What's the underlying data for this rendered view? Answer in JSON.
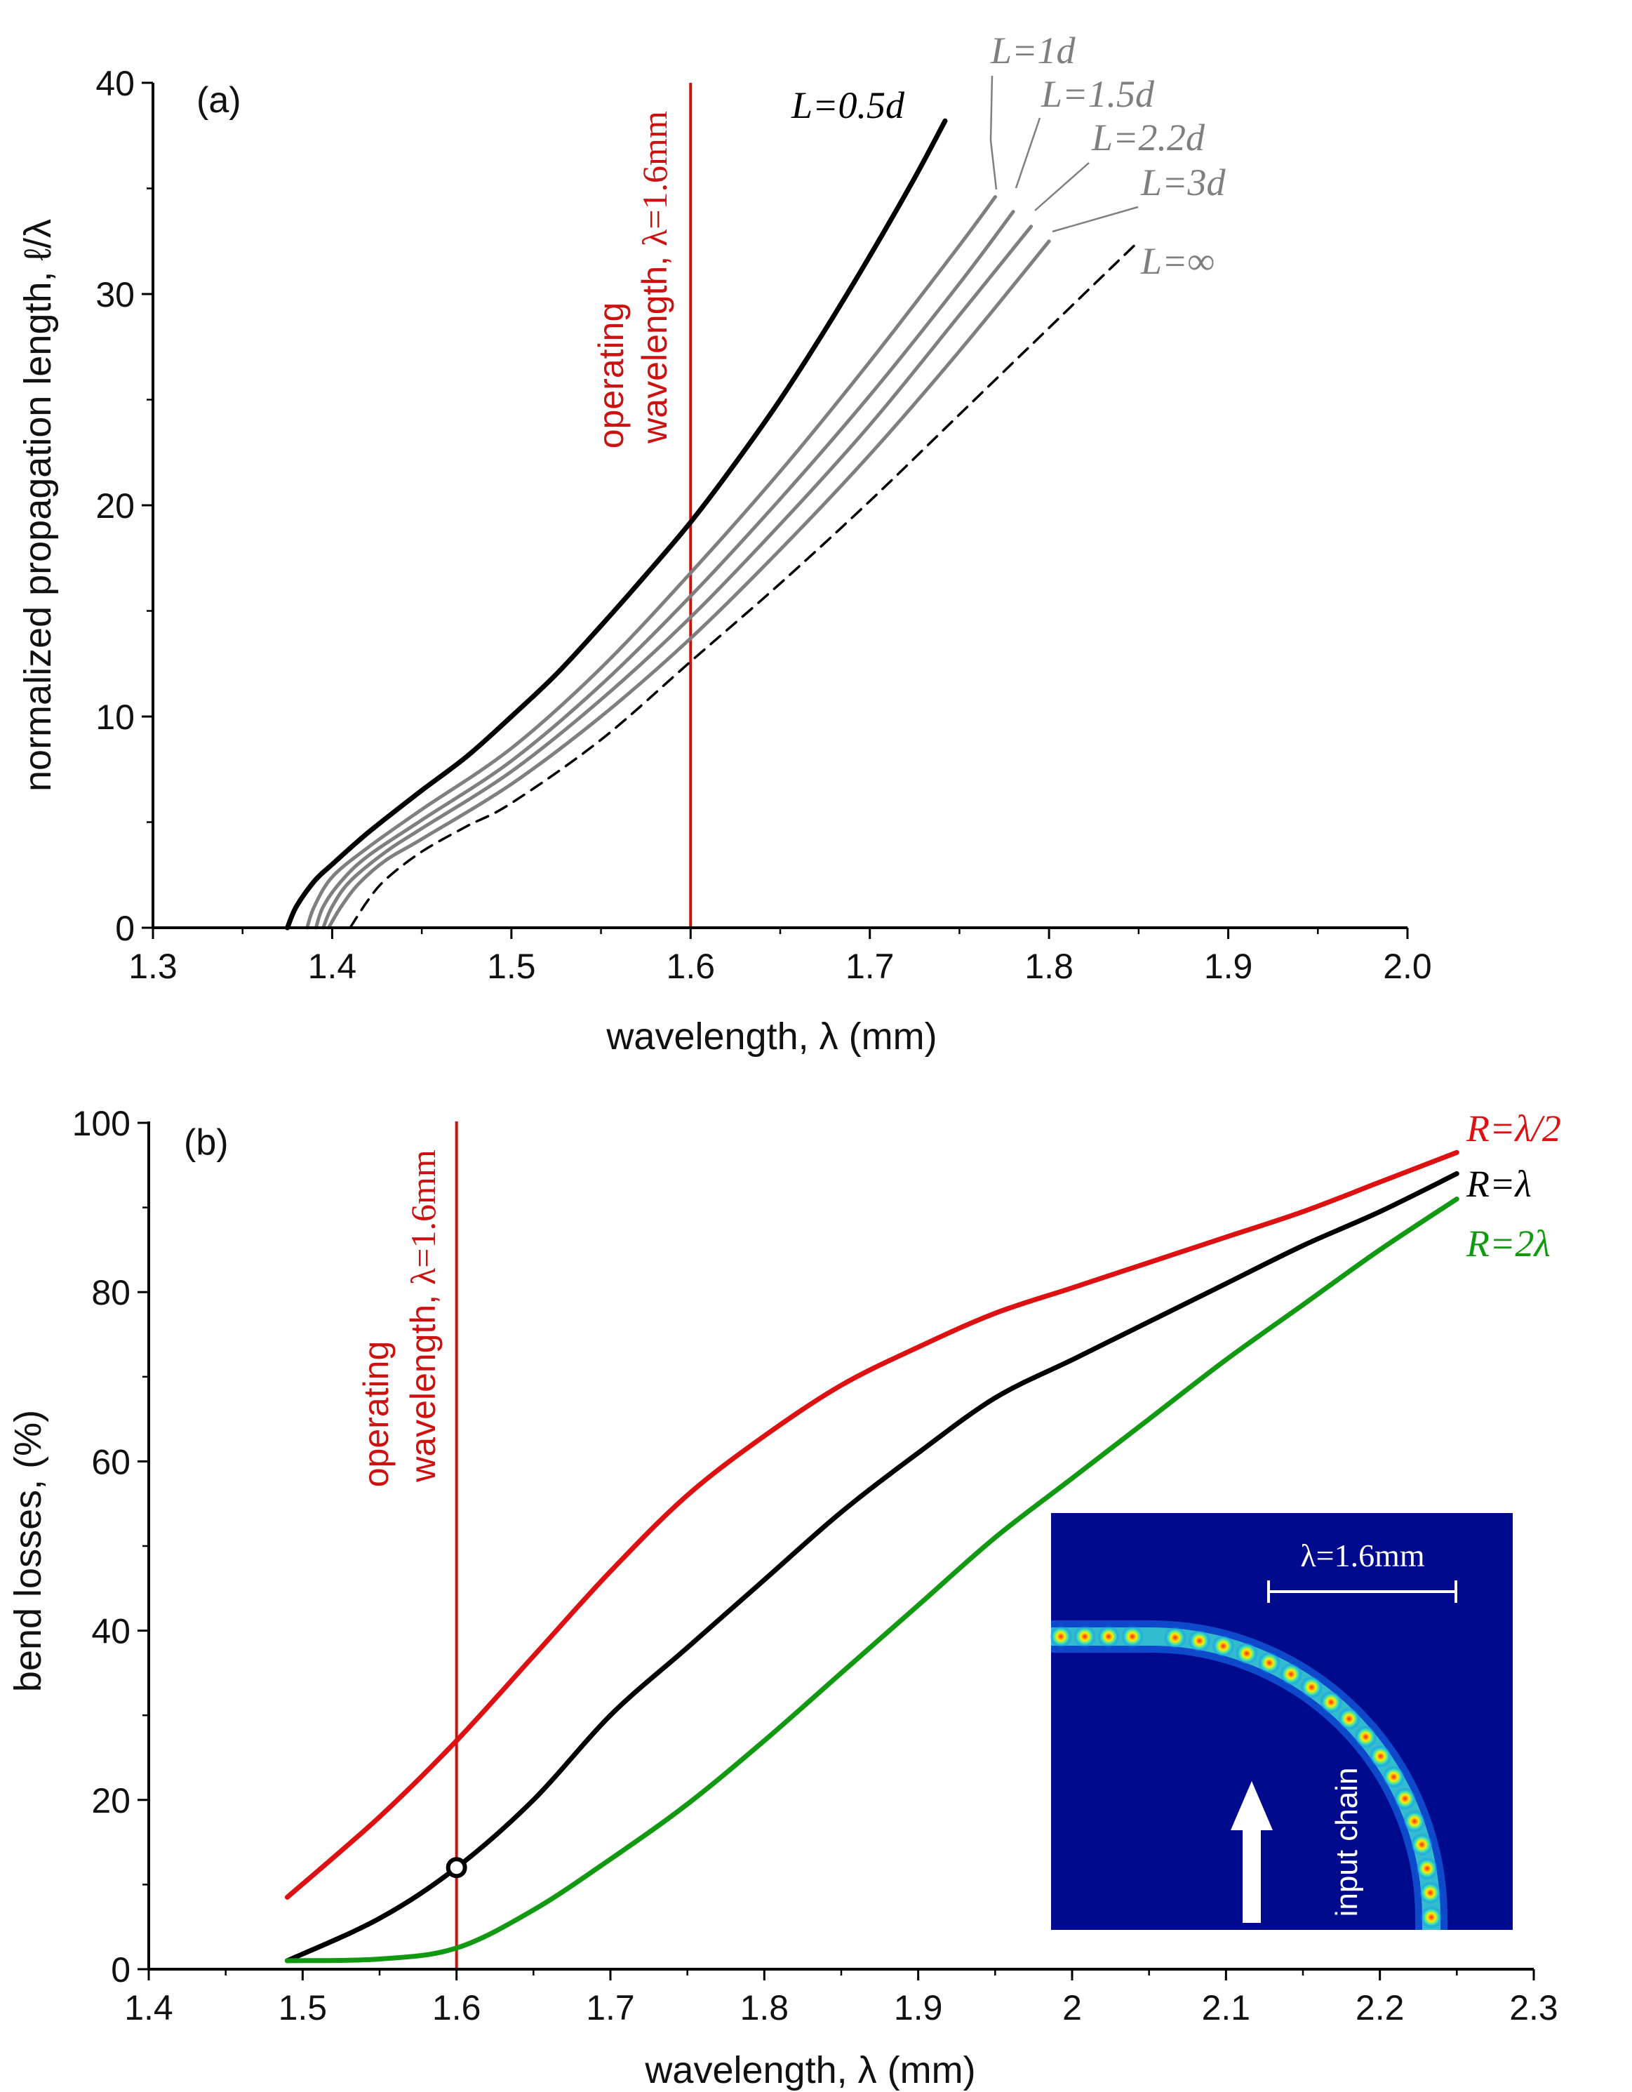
{
  "chart_data": [
    {
      "panel": "(a)",
      "type": "line",
      "xlabel": "wavelength, λ (mm)",
      "ylabel": "normalized propagation length, ℓ/λ",
      "xlim": [
        1.3,
        2.0
      ],
      "ylim": [
        0,
        40
      ],
      "xticks": [
        "1.3",
        "1.4",
        "1.5",
        "1.6",
        "1.7",
        "1.8",
        "1.9",
        "2.0"
      ],
      "yticks": [
        "0",
        "10",
        "20",
        "30",
        "40"
      ],
      "series": [
        {
          "name": "L=0.5d",
          "color": "#000000",
          "dash": false,
          "x": [
            1.375,
            1.38,
            1.39,
            1.4,
            1.42,
            1.45,
            1.475,
            1.5,
            1.525,
            1.55,
            1.575,
            1.6,
            1.625,
            1.65,
            1.675,
            1.7,
            1.725,
            1.742
          ],
          "y": [
            0,
            1.0,
            2.2,
            3.0,
            4.5,
            6.5,
            8.1,
            10.0,
            12.0,
            14.3,
            16.7,
            19.2,
            22.0,
            25.0,
            28.3,
            31.8,
            35.5,
            38.2
          ]
        },
        {
          "name": "L=1d",
          "color": "#7f7f7f",
          "dash": false,
          "x": [
            1.386,
            1.39,
            1.4,
            1.42,
            1.45,
            1.5,
            1.55,
            1.6,
            1.65,
            1.7,
            1.75,
            1.77
          ],
          "y": [
            0,
            1.0,
            2.4,
            3.8,
            5.6,
            8.5,
            12.3,
            16.8,
            21.6,
            26.8,
            32.3,
            34.6
          ]
        },
        {
          "name": "L=1.5d",
          "color": "#7f7f7f",
          "dash": false,
          "x": [
            1.391,
            1.395,
            1.405,
            1.42,
            1.45,
            1.5,
            1.55,
            1.6,
            1.65,
            1.7,
            1.75,
            1.78
          ],
          "y": [
            0,
            1.0,
            2.2,
            3.4,
            5.1,
            7.9,
            11.5,
            15.7,
            20.3,
            25.2,
            30.5,
            33.9
          ]
        },
        {
          "name": "L=2.2d",
          "color": "#7f7f7f",
          "dash": false,
          "x": [
            1.395,
            1.4,
            1.41,
            1.43,
            1.45,
            1.5,
            1.55,
            1.6,
            1.65,
            1.7,
            1.75,
            1.79
          ],
          "y": [
            0,
            1.0,
            2.2,
            3.6,
            4.7,
            7.4,
            10.8,
            14.7,
            19.1,
            23.8,
            29.0,
            33.2
          ]
        },
        {
          "name": "L=3d",
          "color": "#7f7f7f",
          "dash": false,
          "x": [
            1.398,
            1.405,
            1.415,
            1.43,
            1.45,
            1.5,
            1.55,
            1.6,
            1.65,
            1.7,
            1.75,
            1.8
          ],
          "y": [
            0,
            1.0,
            2.1,
            3.2,
            4.2,
            6.8,
            10.0,
            13.7,
            17.9,
            22.4,
            27.3,
            32.5
          ]
        },
        {
          "name": "L=∞",
          "color": "#000000",
          "dash": true,
          "x": [
            1.41,
            1.42,
            1.43,
            1.45,
            1.475,
            1.5,
            1.55,
            1.6,
            1.65,
            1.7,
            1.75,
            1.8,
            1.85
          ],
          "y": [
            0,
            1.3,
            2.3,
            3.6,
            4.8,
            5.9,
            8.9,
            12.6,
            16.3,
            20.2,
            24.3,
            28.4,
            32.5
          ]
        }
      ],
      "operating_line": {
        "x": 1.6,
        "color": "#cc1111",
        "label_line1": "operating",
        "label_line2": "wavelength,",
        "label_eq": "λ=1.6mm"
      }
    },
    {
      "panel": "(b)",
      "type": "line",
      "xlabel": "wavelength, λ (mm)",
      "ylabel": "bend losses, (%)",
      "xlim": [
        1.4,
        2.3
      ],
      "ylim": [
        0,
        100
      ],
      "xticks": [
        "1.4",
        "1.5",
        "1.6",
        "1.7",
        "1.8",
        "1.9",
        "2",
        "2.1",
        "2.2",
        "2.3"
      ],
      "yticks": [
        "0",
        "20",
        "40",
        "60",
        "80",
        "100"
      ],
      "series": [
        {
          "name": "R=λ/2",
          "color": "#dd1111",
          "x": [
            1.49,
            1.55,
            1.6,
            1.65,
            1.7,
            1.75,
            1.8,
            1.85,
            1.9,
            1.95,
            2.0,
            2.05,
            2.1,
            2.15,
            2.2,
            2.25
          ],
          "y": [
            8.5,
            18,
            27,
            37,
            47,
            56,
            63,
            69,
            73.5,
            77.5,
            80.5,
            83.5,
            86.5,
            89.5,
            93,
            96.5
          ]
        },
        {
          "name": "R=λ",
          "color": "#000000",
          "x": [
            1.49,
            1.55,
            1.6,
            1.65,
            1.7,
            1.75,
            1.8,
            1.85,
            1.9,
            1.95,
            2.0,
            2.05,
            2.1,
            2.15,
            2.2,
            2.25
          ],
          "y": [
            1,
            6,
            12,
            20,
            30,
            38,
            46,
            54,
            61,
            67.5,
            72,
            76.5,
            81,
            85.5,
            89.5,
            94
          ]
        },
        {
          "name": "R=2λ",
          "color": "#119911",
          "x": [
            1.49,
            1.55,
            1.6,
            1.65,
            1.7,
            1.75,
            1.8,
            1.85,
            1.9,
            1.95,
            2.0,
            2.05,
            2.1,
            2.15,
            2.2,
            2.25
          ],
          "y": [
            1,
            1.2,
            2.5,
            7,
            13,
            19.5,
            27,
            35,
            43,
            51,
            58,
            65,
            72,
            78.5,
            85,
            91
          ]
        }
      ],
      "marker": {
        "x": 1.6,
        "y": 12
      },
      "operating_line": {
        "x": 1.6,
        "color": "#cc1111",
        "label_line1": "operating",
        "label_line2": "wavelength,",
        "label_eq": "λ=1.6mm"
      },
      "inset": {
        "scale_label": "λ=1.6mm",
        "chain_label": "input chain",
        "background": "#000a8c"
      }
    }
  ]
}
